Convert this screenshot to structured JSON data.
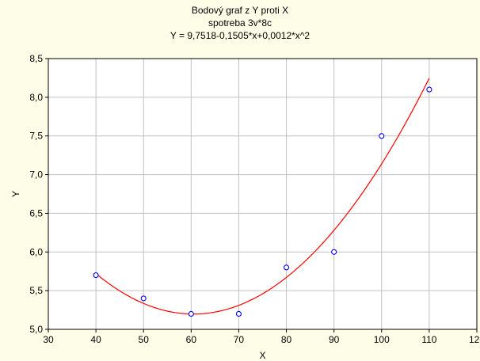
{
  "chart_data": {
    "type": "scatter",
    "title": "Bodový graf z Y proti X",
    "subtitle": "spotreba 3v*8c",
    "equation": "Y = 9,7518-0,1505*x+0,0012*x^2",
    "xlabel": "X",
    "ylabel": "Y",
    "xlim": [
      30,
      120
    ],
    "ylim": [
      5.0,
      8.5
    ],
    "x_ticks": [
      "30",
      "40",
      "50",
      "60",
      "70",
      "80",
      "90",
      "100",
      "110",
      "120"
    ],
    "y_ticks": [
      "5,0",
      "5,5",
      "6,0",
      "6,5",
      "7,0",
      "7,5",
      "8,0",
      "8,5"
    ],
    "grid": true,
    "points": [
      {
        "x": 40,
        "y": 5.7
      },
      {
        "x": 50,
        "y": 5.4
      },
      {
        "x": 60,
        "y": 5.2
      },
      {
        "x": 70,
        "y": 5.2
      },
      {
        "x": 80,
        "y": 5.8
      },
      {
        "x": 90,
        "y": 6.0
      },
      {
        "x": 100,
        "y": 7.5
      },
      {
        "x": 110,
        "y": 8.1
      }
    ],
    "fit": {
      "type": "quadratic",
      "x_range": [
        40,
        110
      ]
    },
    "colors": {
      "background": "#fefde8",
      "plot_background": "#ffffff",
      "points": "#0000ff",
      "fit_line": "#ff0000",
      "grid": "#c0c0c0"
    }
  }
}
